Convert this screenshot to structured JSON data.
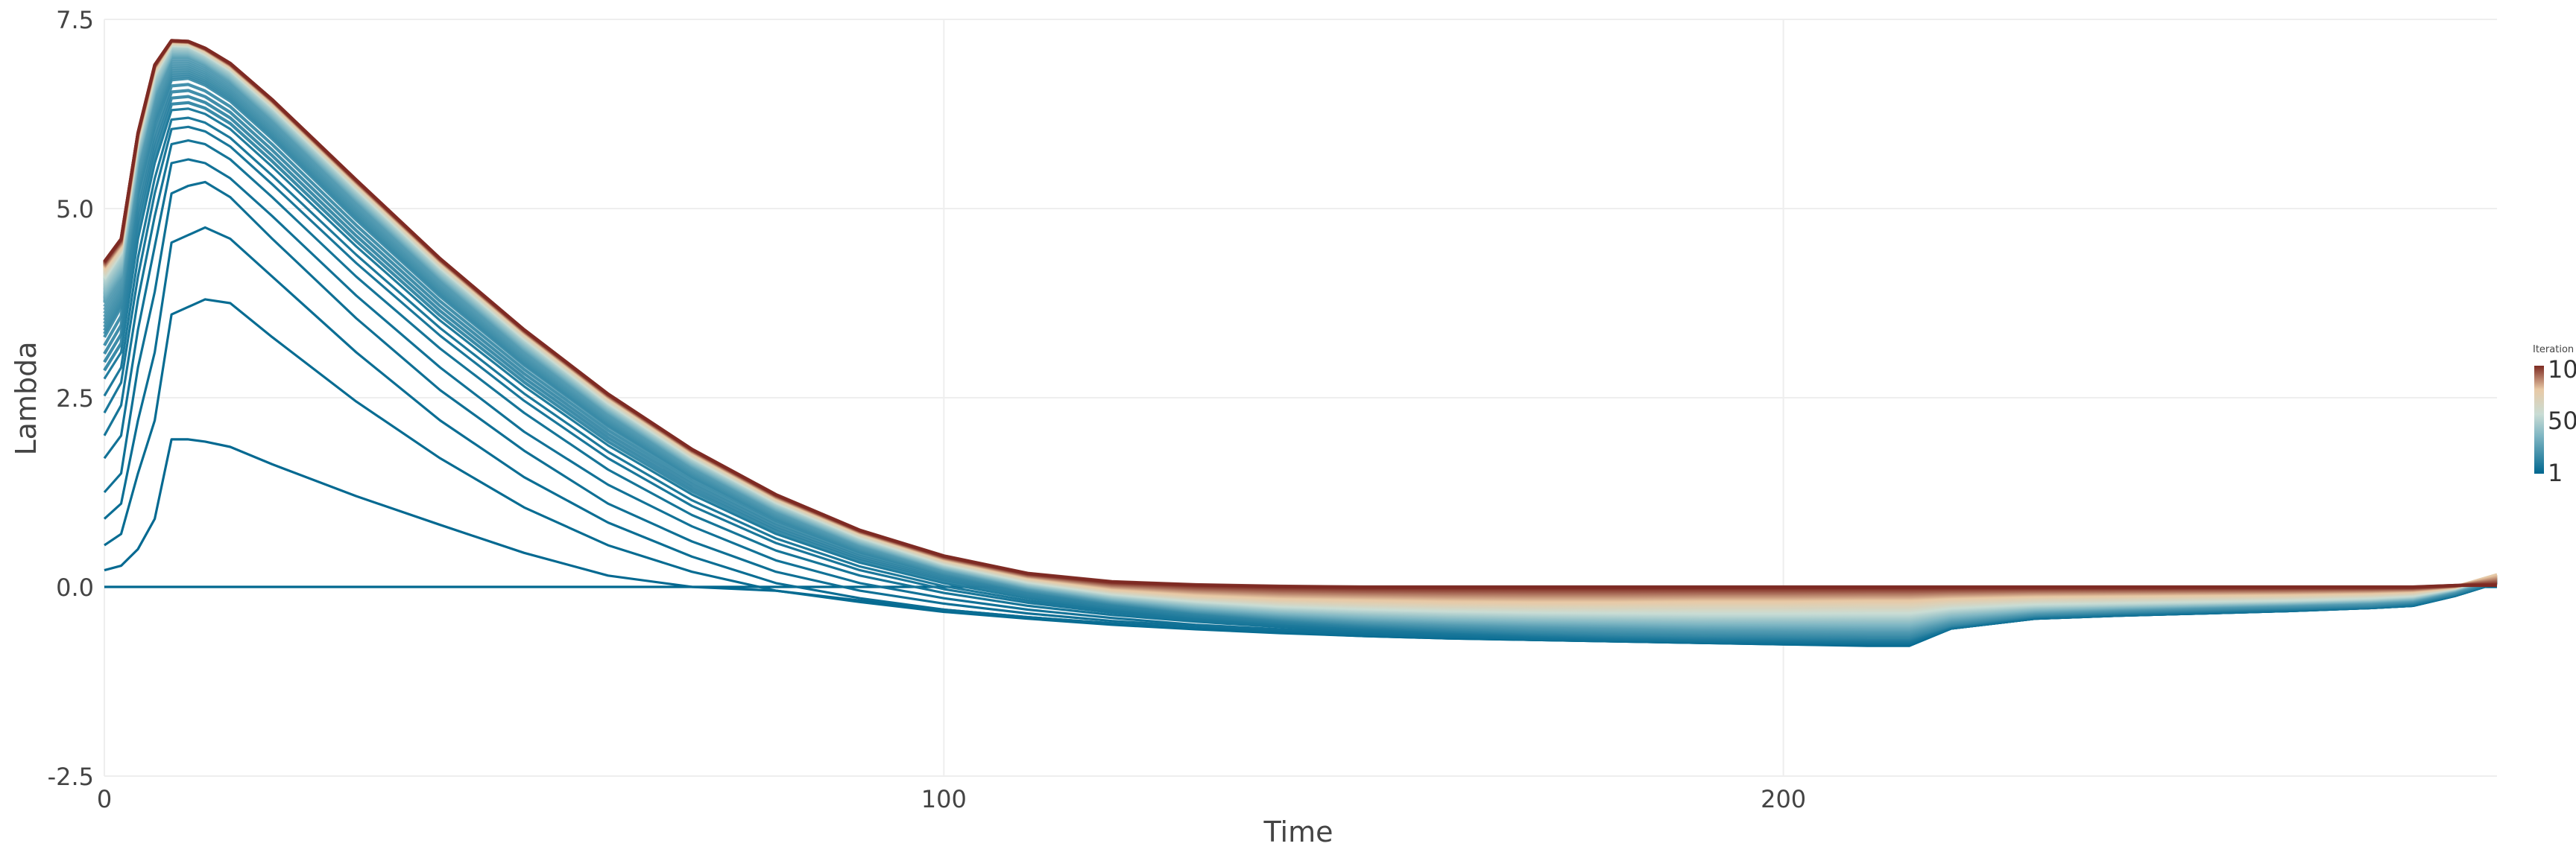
{
  "chart_data": {
    "type": "line",
    "title": "",
    "xlabel": "Time",
    "ylabel": "Lambda",
    "xlim": [
      0,
      285
    ],
    "ylim": [
      -2.5,
      7.5
    ],
    "x_ticks": [
      0,
      100,
      200
    ],
    "x_tick_labels": [
      "0",
      "100",
      "200"
    ],
    "y_ticks": [
      -2.5,
      0,
      2.5,
      5,
      7.5
    ],
    "y_tick_labels": [
      "-2.5",
      "0.0",
      "2.5",
      "5.0",
      "7.5"
    ],
    "grid": true,
    "legend": {
      "type": "colorbar",
      "title": "Iteration",
      "position": "right",
      "range": [
        1,
        100
      ],
      "tick_labels": [
        "100",
        "50",
        "1"
      ],
      "colors": [
        "#00678f",
        "#c9dcd4",
        "#e8c9a5",
        "#7d2a22"
      ]
    },
    "iterations": 100,
    "series_key_iterations": [
      1,
      2,
      3,
      4,
      5,
      6,
      7,
      8,
      10,
      15,
      25,
      50,
      75,
      100
    ],
    "x": [
      0,
      2,
      4,
      6,
      8,
      10,
      12,
      15,
      20,
      30,
      40,
      50,
      60,
      70,
      80,
      90,
      100,
      110,
      120,
      130,
      140,
      150,
      160,
      170,
      180,
      190,
      200,
      210,
      215,
      220,
      230,
      240,
      250,
      260,
      270,
      275,
      280,
      285
    ],
    "series": [
      {
        "iteration": 1,
        "values": [
          0,
          0,
          0,
          0,
          0,
          0,
          0,
          0,
          0,
          0,
          0,
          0,
          0,
          0,
          0,
          0,
          0,
          0,
          0,
          0,
          0,
          0,
          0,
          0,
          0,
          0,
          0,
          0,
          0,
          0,
          0,
          0,
          0,
          0,
          0,
          0,
          0,
          0
        ]
      },
      {
        "iteration": 2,
        "values": [
          0.22,
          0.28,
          0.5,
          0.9,
          1.95,
          1.95,
          1.92,
          1.85,
          1.62,
          1.2,
          0.82,
          0.45,
          0.15,
          0,
          -0.05,
          -0.18,
          -0.3,
          -0.4,
          -0.48,
          -0.55,
          -0.6,
          -0.65,
          -0.68,
          -0.7,
          -0.72,
          -0.74,
          -0.76,
          -0.78,
          -0.78,
          -0.55,
          -0.42,
          -0.38,
          -0.35,
          -0.32,
          -0.28,
          -0.25,
          -0.12,
          0.05
        ]
      },
      {
        "iteration": 3,
        "values": [
          0.55,
          0.7,
          1.5,
          2.2,
          3.6,
          3.7,
          3.8,
          3.75,
          3.3,
          2.45,
          1.7,
          1.05,
          0.55,
          0.2,
          -0.05,
          -0.2,
          -0.33,
          -0.42,
          -0.5,
          -0.56,
          -0.61,
          -0.65,
          -0.68,
          -0.7,
          -0.72,
          -0.74,
          -0.76,
          -0.77,
          -0.77,
          -0.55,
          -0.42,
          -0.38,
          -0.35,
          -0.32,
          -0.28,
          -0.25,
          -0.12,
          0.05
        ]
      },
      {
        "iteration": 4,
        "values": [
          0.9,
          1.1,
          2.2,
          3.1,
          4.55,
          4.65,
          4.75,
          4.6,
          4.1,
          3.1,
          2.2,
          1.45,
          0.85,
          0.4,
          0.05,
          -0.15,
          -0.3,
          -0.4,
          -0.48,
          -0.55,
          -0.6,
          -0.64,
          -0.67,
          -0.7,
          -0.72,
          -0.74,
          -0.75,
          -0.76,
          -0.76,
          -0.55,
          -0.42,
          -0.38,
          -0.35,
          -0.32,
          -0.28,
          -0.25,
          -0.12,
          0.05
        ]
      },
      {
        "iteration": 5,
        "values": [
          1.25,
          1.5,
          2.9,
          3.9,
          5.2,
          5.3,
          5.35,
          5.15,
          4.6,
          3.55,
          2.6,
          1.8,
          1.1,
          0.6,
          0.2,
          -0.05,
          -0.22,
          -0.35,
          -0.45,
          -0.52,
          -0.58,
          -0.63,
          -0.66,
          -0.69,
          -0.71,
          -0.73,
          -0.74,
          -0.75,
          -0.75,
          -0.55,
          -0.42,
          -0.38,
          -0.35,
          -0.32,
          -0.28,
          -0.25,
          -0.12,
          0.05
        ]
      },
      {
        "iteration": 6,
        "values": [
          1.7,
          2.0,
          3.4,
          4.5,
          5.6,
          5.65,
          5.6,
          5.4,
          4.9,
          3.85,
          2.9,
          2.05,
          1.35,
          0.8,
          0.35,
          0.05,
          -0.15,
          -0.3,
          -0.41,
          -0.5,
          -0.56,
          -0.61,
          -0.65,
          -0.68,
          -0.7,
          -0.72,
          -0.73,
          -0.74,
          -0.74,
          -0.54,
          -0.41,
          -0.37,
          -0.34,
          -0.31,
          -0.27,
          -0.24,
          -0.11,
          0.05
        ]
      },
      {
        "iteration": 7,
        "values": [
          2.0,
          2.4,
          3.8,
          4.9,
          5.85,
          5.9,
          5.85,
          5.65,
          5.15,
          4.1,
          3.15,
          2.3,
          1.55,
          0.95,
          0.48,
          0.15,
          -0.08,
          -0.25,
          -0.37,
          -0.46,
          -0.53,
          -0.59,
          -0.63,
          -0.66,
          -0.69,
          -0.71,
          -0.72,
          -0.73,
          -0.73,
          -0.54,
          -0.41,
          -0.37,
          -0.34,
          -0.31,
          -0.27,
          -0.24,
          -0.11,
          0.05
        ]
      },
      {
        "iteration": 8,
        "values": [
          2.3,
          2.7,
          4.1,
          5.2,
          6.05,
          6.08,
          6.02,
          5.82,
          5.32,
          4.28,
          3.32,
          2.46,
          1.7,
          1.07,
          0.58,
          0.22,
          -0.03,
          -0.21,
          -0.34,
          -0.44,
          -0.51,
          -0.57,
          -0.61,
          -0.65,
          -0.68,
          -0.7,
          -0.71,
          -0.72,
          -0.72,
          -0.53,
          -0.4,
          -0.36,
          -0.33,
          -0.3,
          -0.27,
          -0.23,
          -0.1,
          0.06
        ]
      },
      {
        "iteration": 10,
        "values": [
          2.75,
          3.1,
          4.6,
          5.6,
          6.3,
          6.32,
          6.25,
          6.05,
          5.55,
          4.5,
          3.52,
          2.65,
          1.87,
          1.22,
          0.7,
          0.32,
          0.05,
          -0.15,
          -0.29,
          -0.4,
          -0.48,
          -0.54,
          -0.59,
          -0.63,
          -0.66,
          -0.68,
          -0.69,
          -0.7,
          -0.7,
          -0.52,
          -0.39,
          -0.35,
          -0.32,
          -0.29,
          -0.26,
          -0.22,
          -0.1,
          0.07
        ]
      },
      {
        "iteration": 15,
        "values": [
          3.3,
          3.7,
          5.2,
          6.1,
          6.7,
          6.72,
          6.63,
          6.42,
          5.92,
          4.85,
          3.84,
          2.93,
          2.12,
          1.44,
          0.88,
          0.46,
          0.16,
          -0.06,
          -0.22,
          -0.34,
          -0.43,
          -0.5,
          -0.55,
          -0.59,
          -0.62,
          -0.64,
          -0.65,
          -0.66,
          -0.66,
          -0.5,
          -0.37,
          -0.33,
          -0.3,
          -0.27,
          -0.24,
          -0.2,
          -0.08,
          0.09
        ]
      },
      {
        "iteration": 25,
        "values": [
          3.75,
          4.1,
          5.6,
          6.5,
          7.0,
          7.0,
          6.9,
          6.68,
          6.18,
          5.1,
          4.07,
          3.13,
          2.3,
          1.59,
          1.01,
          0.56,
          0.23,
          -0.01,
          -0.18,
          -0.3,
          -0.38,
          -0.44,
          -0.48,
          -0.51,
          -0.53,
          -0.55,
          -0.56,
          -0.57,
          -0.57,
          -0.44,
          -0.33,
          -0.29,
          -0.26,
          -0.23,
          -0.2,
          -0.17,
          -0.05,
          0.12
        ]
      },
      {
        "iteration": 50,
        "values": [
          4.05,
          4.4,
          5.85,
          6.75,
          7.15,
          7.14,
          7.03,
          6.82,
          6.33,
          5.25,
          4.21,
          3.27,
          2.42,
          1.7,
          1.11,
          0.65,
          0.3,
          0.06,
          -0.1,
          -0.2,
          -0.27,
          -0.31,
          -0.34,
          -0.36,
          -0.37,
          -0.38,
          -0.38,
          -0.38,
          -0.38,
          -0.3,
          -0.24,
          -0.22,
          -0.2,
          -0.18,
          -0.15,
          -0.12,
          -0.02,
          0.15
        ]
      },
      {
        "iteration": 75,
        "values": [
          4.2,
          4.5,
          5.95,
          6.85,
          7.2,
          7.19,
          7.09,
          6.88,
          6.4,
          5.33,
          4.29,
          3.35,
          2.5,
          1.77,
          1.17,
          0.71,
          0.36,
          0.12,
          -0.03,
          -0.11,
          -0.16,
          -0.18,
          -0.2,
          -0.21,
          -0.21,
          -0.2,
          -0.2,
          -0.19,
          -0.19,
          -0.16,
          -0.13,
          -0.12,
          -0.11,
          -0.1,
          -0.08,
          -0.06,
          0.0,
          0.16
        ]
      },
      {
        "iteration": 100,
        "values": [
          4.3,
          4.6,
          6.0,
          6.9,
          7.22,
          7.21,
          7.12,
          6.92,
          6.44,
          5.38,
          4.34,
          3.4,
          2.55,
          1.82,
          1.22,
          0.75,
          0.41,
          0.18,
          0.07,
          0.03,
          0.01,
          0.0,
          0.0,
          0.0,
          0.0,
          0.0,
          0.0,
          0.0,
          0.0,
          0.0,
          0.0,
          0.0,
          0.0,
          0.0,
          0.0,
          0.0,
          0.02,
          0.02
        ]
      }
    ]
  }
}
